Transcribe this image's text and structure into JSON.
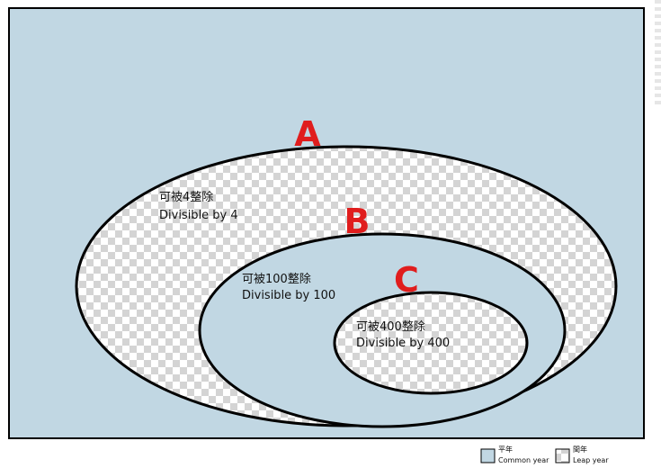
{
  "colors": {
    "common_fill": "#c1d7e3",
    "checker_light": "#ffffff",
    "checker_dark": "#d4d4d4",
    "outline": "#000000",
    "letter": "#e01d1d"
  },
  "sets": [
    {
      "letter": "A",
      "label_zh": "可被4整除",
      "label_en": "Divisible by 4",
      "fill": "checker"
    },
    {
      "letter": "B",
      "label_zh": "可被100整除",
      "label_en": "Divisible by 100",
      "fill": "solid"
    },
    {
      "letter": "C",
      "label_zh": "可被400整除",
      "label_en": "Divisible by 400",
      "fill": "checker"
    }
  ],
  "legend": [
    {
      "zh": "平年",
      "en": "Common year",
      "fill": "solid"
    },
    {
      "zh": "閏年",
      "en": "Leap year",
      "fill": "checker"
    }
  ]
}
